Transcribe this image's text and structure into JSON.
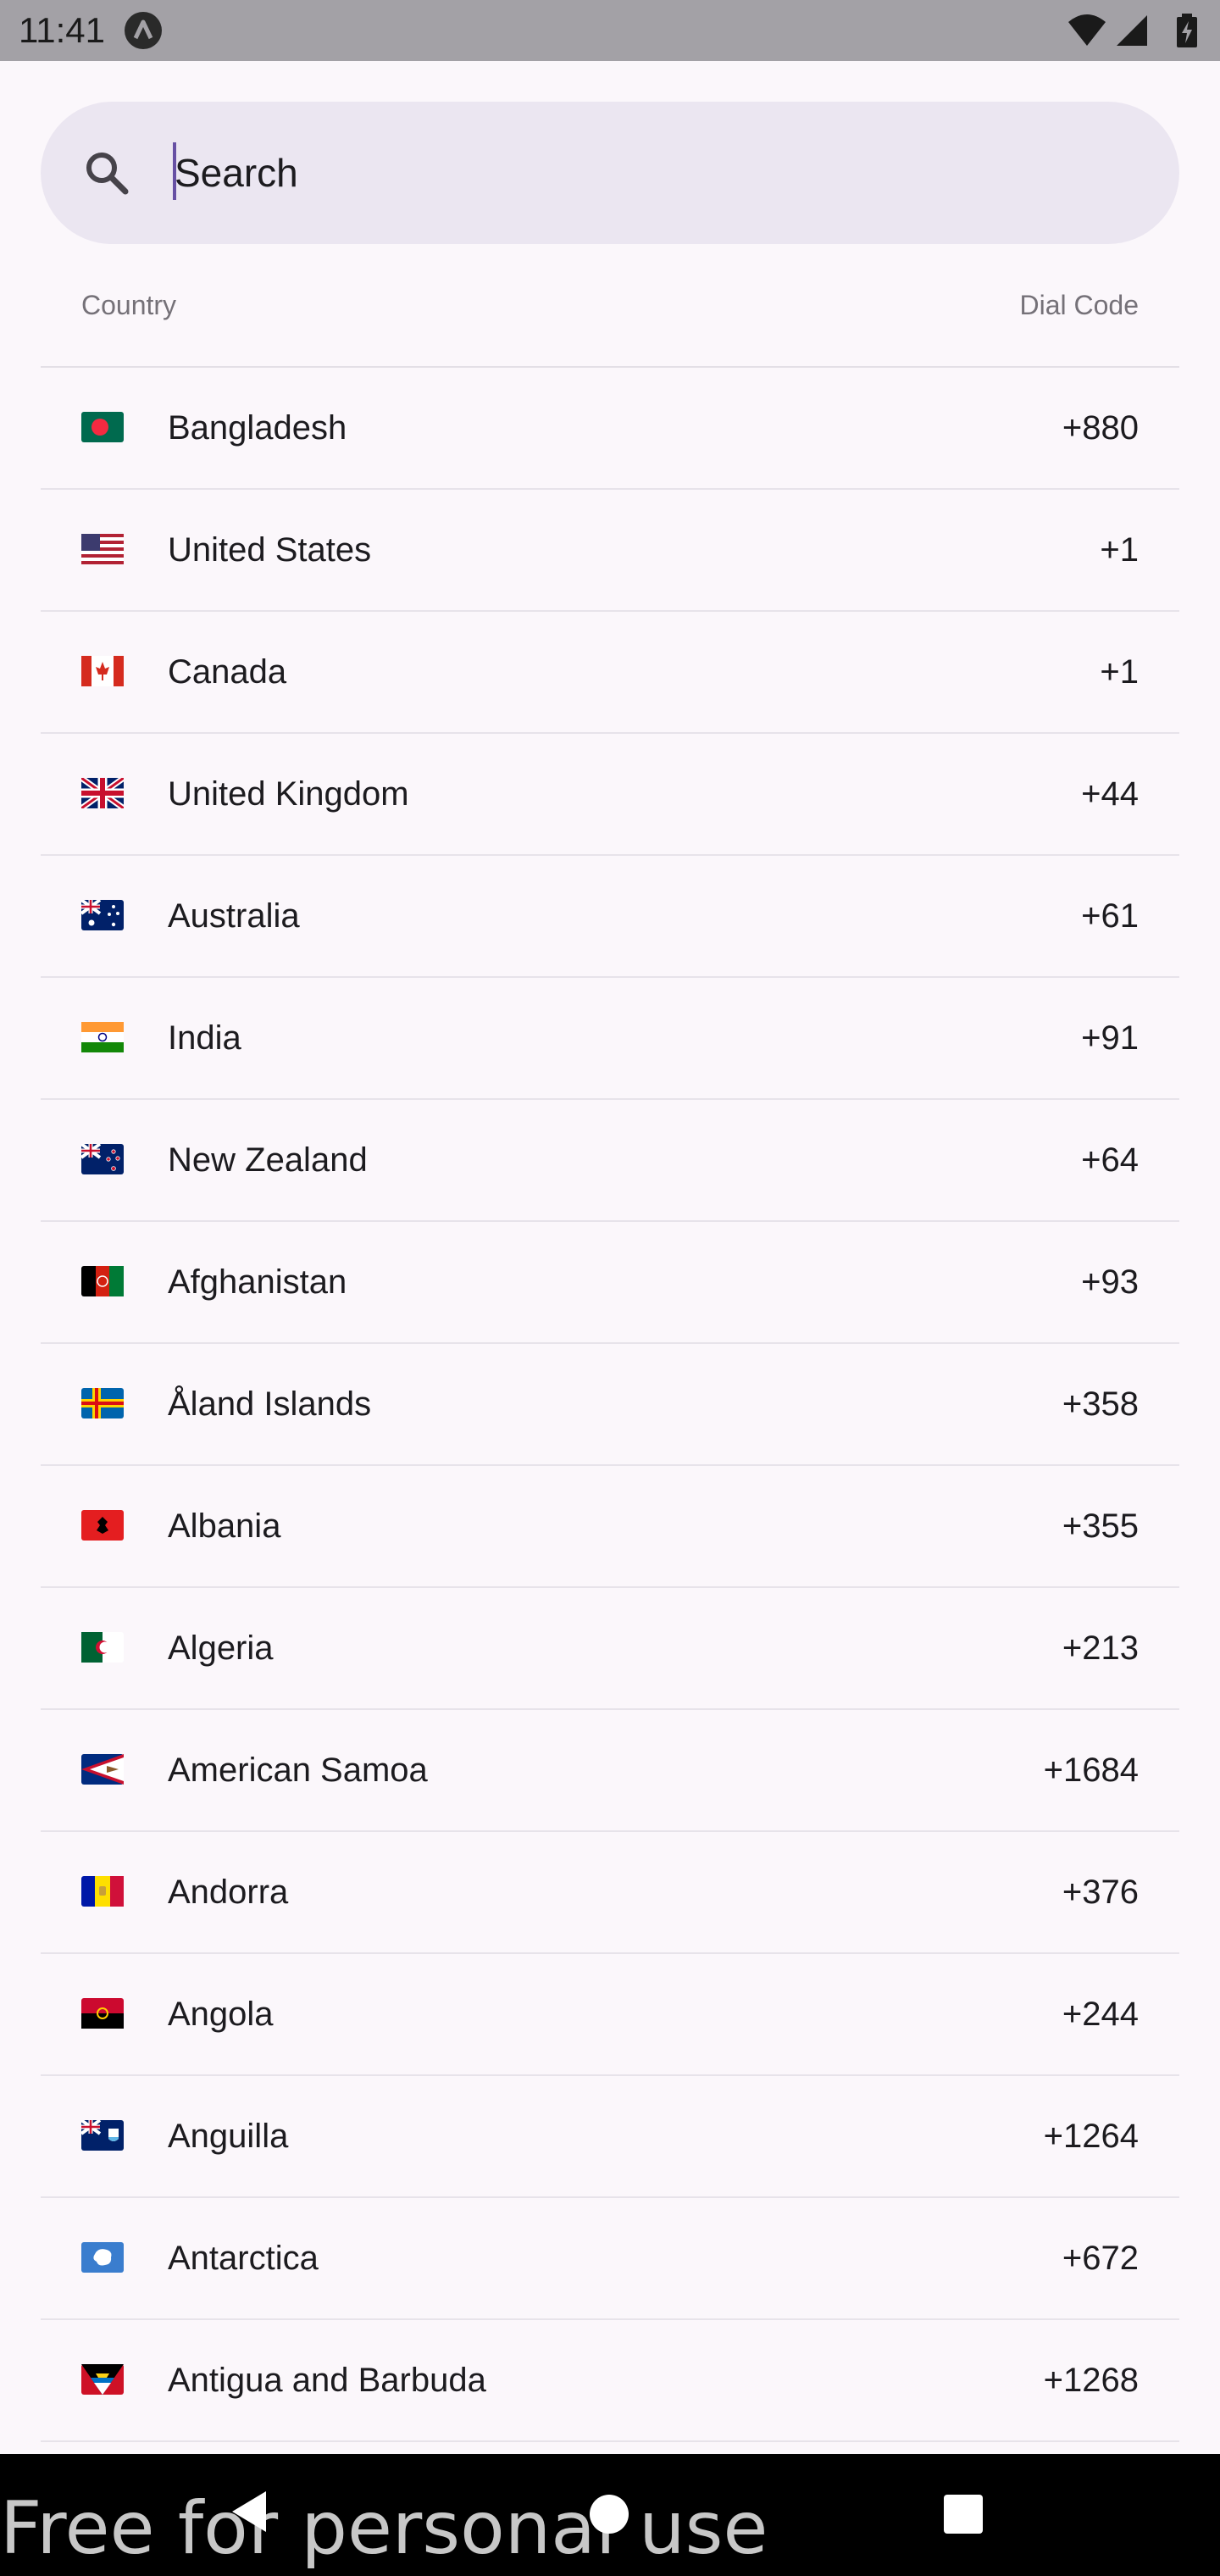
{
  "status_bar": {
    "time": "11:41"
  },
  "search": {
    "placeholder": "Search"
  },
  "header": {
    "country_label": "Country",
    "dial_label": "Dial Code"
  },
  "countries": [
    {
      "name": "Bangladesh",
      "dial": "+880",
      "flag": "flag-bangladesh"
    },
    {
      "name": "United States",
      "dial": "+1",
      "flag": "flag-united-states"
    },
    {
      "name": "Canada",
      "dial": "+1",
      "flag": "flag-canada"
    },
    {
      "name": "United Kingdom",
      "dial": "+44",
      "flag": "flag-united-kingdom"
    },
    {
      "name": "Australia",
      "dial": "+61",
      "flag": "flag-australia"
    },
    {
      "name": "India",
      "dial": "+91",
      "flag": "flag-india"
    },
    {
      "name": "New Zealand",
      "dial": "+64",
      "flag": "flag-new-zealand"
    },
    {
      "name": "Afghanistan",
      "dial": "+93",
      "flag": "flag-afghanistan"
    },
    {
      "name": "Åland Islands",
      "dial": "+358",
      "flag": "flag-aland-islands"
    },
    {
      "name": "Albania",
      "dial": "+355",
      "flag": "flag-albania"
    },
    {
      "name": "Algeria",
      "dial": "+213",
      "flag": "flag-algeria"
    },
    {
      "name": "American Samoa",
      "dial": "+1684",
      "flag": "flag-american-samoa"
    },
    {
      "name": "Andorra",
      "dial": "+376",
      "flag": "flag-andorra"
    },
    {
      "name": "Angola",
      "dial": "+244",
      "flag": "flag-angola"
    },
    {
      "name": "Anguilla",
      "dial": "+1264",
      "flag": "flag-anguilla"
    },
    {
      "name": "Antarctica",
      "dial": "+672",
      "flag": "flag-antarctica"
    },
    {
      "name": "Antigua and Barbuda",
      "dial": "+1268",
      "flag": "flag-antigua-and-barbuda"
    }
  ],
  "watermark": "Free for personal use",
  "colors": {
    "accent": "#6750a4",
    "search_bg": "#ebe6f1",
    "background": "#fbf7fb"
  }
}
